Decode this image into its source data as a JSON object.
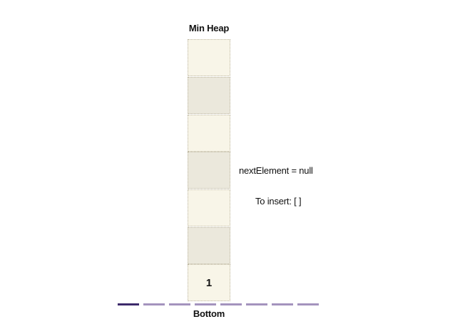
{
  "heap": {
    "title": "Min Heap",
    "bottom_label": "Bottom",
    "cells": [
      "",
      "",
      "",
      "",
      "",
      "",
      "1"
    ]
  },
  "info": {
    "next_element": "nextElement = null",
    "to_insert": "To insert: [ ]"
  },
  "pager": {
    "total": 8,
    "active_index": 0
  },
  "colors": {
    "cell_light": "#f8f5e8",
    "cell_dark": "#ebe8dc",
    "dash_active": "#3d2a6b",
    "dash_inactive": "#a493bd"
  }
}
